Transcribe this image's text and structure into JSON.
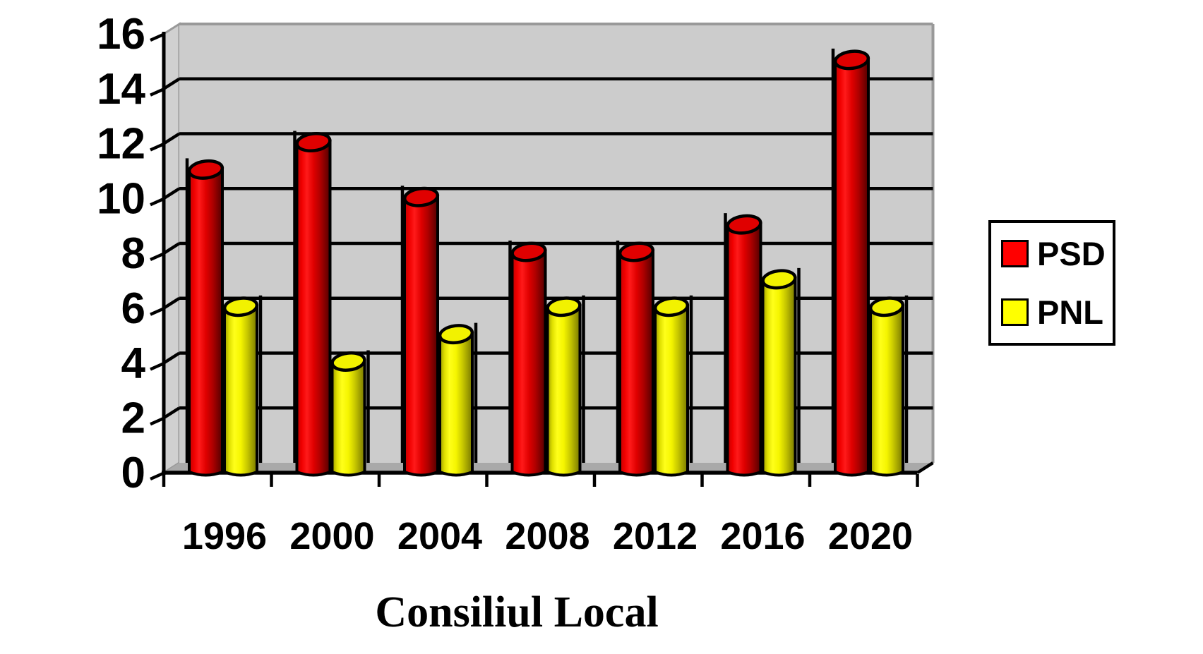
{
  "chart_data": {
    "type": "bar",
    "style": "3d-cylinder",
    "title": "Consiliul Local",
    "categories": [
      "1996",
      "2000",
      "2004",
      "2008",
      "2012",
      "2016",
      "2020"
    ],
    "series": [
      {
        "name": "PSD",
        "color": "#FF0000",
        "top_color": "#E00000",
        "gradient": [
          "#C00000",
          "#F00000",
          "#FF1A1A",
          "#E00000",
          "#B00000",
          "#520000"
        ],
        "values": [
          11,
          12,
          10,
          8,
          8,
          9,
          15
        ]
      },
      {
        "name": "PNL",
        "color": "#FFFF00",
        "top_color": "#F2F200",
        "gradient": [
          "#9A9A00",
          "#E0E000",
          "#FFFF1A",
          "#F5F500",
          "#C8C800",
          "#787800"
        ],
        "values": [
          6,
          4,
          5,
          6,
          6,
          7,
          6
        ]
      }
    ],
    "xlabel": "",
    "ylabel": "",
    "ylim": [
      0,
      16
    ],
    "ytick_step": 2,
    "yticks": [
      0,
      2,
      4,
      6,
      8,
      10,
      12,
      14,
      16
    ],
    "grid": true,
    "legend_position": "right",
    "background_color": "#FFFFFF",
    "wall_color": "#CCCCCC",
    "side_wall_color": "#D0D0D0",
    "floor_color": "#A9A9A9",
    "wall_edge_color": "#999999",
    "gridline_color": "#000000",
    "text_color": "#000000"
  }
}
